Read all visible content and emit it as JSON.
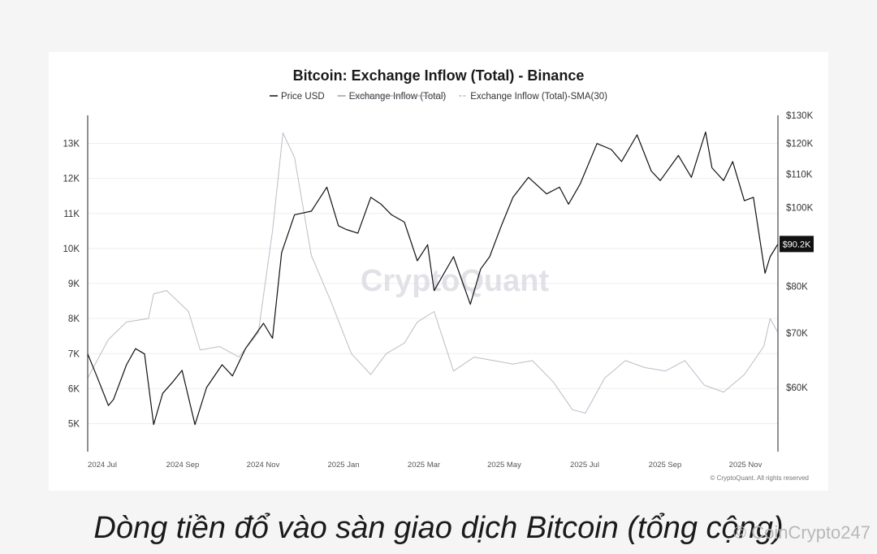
{
  "chart_data": {
    "type": "line",
    "title": "Bitcoin: Exchange Inflow (Total) - Binance",
    "legend": [
      {
        "name": "Price USD",
        "color": "#111111",
        "style": "solid",
        "struck": false
      },
      {
        "name": "Exchange Inflow (Total)",
        "color": "#9a9aa8",
        "style": "solid",
        "struck": true
      },
      {
        "name": "Exchange Inflow (Total)-SMA(30)",
        "color": "#bcbcc8",
        "style": "dashed",
        "struck": false
      }
    ],
    "legend_position": "top-center",
    "x_ticks": [
      "2024 Jul",
      "2024 Sep",
      "2024 Nov",
      "2025 Jan",
      "2025 Mar",
      "2025 May",
      "2025 Jul",
      "2025 Sep",
      "2025 Nov"
    ],
    "x_range": [
      "2024-06-15",
      "2025-12-01"
    ],
    "left_axis": {
      "ticks": [
        "5K",
        "6K",
        "7K",
        "8K",
        "9K",
        "10K",
        "11K",
        "12K",
        "13K"
      ],
      "values": [
        5000,
        6000,
        7000,
        8000,
        9000,
        10000,
        11000,
        12000,
        13000
      ],
      "range": [
        4200,
        13800
      ]
    },
    "right_axis": {
      "ticks": [
        "$60K",
        "$70K",
        "$80K",
        "$100K",
        "$110K",
        "$120K",
        "$130K"
      ],
      "values": [
        60000,
        70000,
        80000,
        100000,
        110000,
        120000,
        130000
      ],
      "scale": "log",
      "range": [
        50000,
        130000
      ]
    },
    "last_price_label": "$90.2K",
    "grid": true,
    "series": [
      {
        "name": "Price USD",
        "axis": "right",
        "x": [
          "2024-06-15",
          "2024-06-22",
          "2024-07-01",
          "2024-07-05",
          "2024-07-15",
          "2024-07-22",
          "2024-07-29",
          "2024-08-05",
          "2024-08-12",
          "2024-08-20",
          "2024-08-27",
          "2024-09-06",
          "2024-09-15",
          "2024-09-27",
          "2024-10-05",
          "2024-10-15",
          "2024-10-29",
          "2024-11-05",
          "2024-11-12",
          "2024-11-22",
          "2024-12-05",
          "2024-12-17",
          "2024-12-26",
          "2025-01-01",
          "2025-01-10",
          "2025-01-20",
          "2025-01-28",
          "2025-02-05",
          "2025-02-15",
          "2025-02-25",
          "2025-03-05",
          "2025-03-10",
          "2025-03-25",
          "2025-04-07",
          "2025-04-15",
          "2025-04-22",
          "2025-05-01",
          "2025-05-10",
          "2025-05-22",
          "2025-06-05",
          "2025-06-15",
          "2025-06-22",
          "2025-07-01",
          "2025-07-14",
          "2025-07-25",
          "2025-08-02",
          "2025-08-14",
          "2025-08-25",
          "2025-09-01",
          "2025-09-15",
          "2025-09-25",
          "2025-10-06",
          "2025-10-11",
          "2025-10-20",
          "2025-10-27",
          "2025-11-05",
          "2025-11-12",
          "2025-11-21",
          "2025-11-25",
          "2025-12-01"
        ],
        "y": [
          66000,
          62000,
          57000,
          58000,
          64000,
          67000,
          66000,
          54000,
          59000,
          61000,
          63000,
          54000,
          60000,
          64000,
          62000,
          67000,
          72000,
          69000,
          88000,
          98000,
          99000,
          106000,
          95000,
          94000,
          93000,
          103000,
          101000,
          98000,
          96000,
          86000,
          90000,
          79000,
          87000,
          76000,
          84000,
          87000,
          95000,
          103000,
          109000,
          104000,
          106000,
          101000,
          107000,
          120000,
          118000,
          114000,
          123000,
          111000,
          108000,
          116000,
          109000,
          124000,
          112000,
          108000,
          114000,
          102000,
          103000,
          83000,
          87000,
          90200
        ]
      },
      {
        "name": "Exchange Inflow (Total)-SMA(30)",
        "axis": "left",
        "x": [
          "2024-06-15",
          "2024-07-01",
          "2024-07-15",
          "2024-08-01",
          "2024-08-05",
          "2024-08-15",
          "2024-09-01",
          "2024-09-10",
          "2024-09-25",
          "2024-10-10",
          "2024-10-25",
          "2024-11-05",
          "2024-11-13",
          "2024-11-22",
          "2024-12-05",
          "2024-12-20",
          "2025-01-05",
          "2025-01-20",
          "2025-02-01",
          "2025-02-15",
          "2025-02-25",
          "2025-03-10",
          "2025-03-25",
          "2025-04-10",
          "2025-04-25",
          "2025-05-10",
          "2025-05-25",
          "2025-06-10",
          "2025-06-25",
          "2025-07-05",
          "2025-07-20",
          "2025-08-05",
          "2025-08-20",
          "2025-09-05",
          "2025-09-20",
          "2025-10-05",
          "2025-10-20",
          "2025-11-05",
          "2025-11-20",
          "2025-11-25",
          "2025-12-01"
        ],
        "y": [
          6300,
          7400,
          7900,
          8000,
          8700,
          8800,
          8200,
          7100,
          7200,
          6900,
          7600,
          10500,
          13300,
          12600,
          9800,
          8500,
          7000,
          6400,
          7000,
          7300,
          7900,
          8200,
          6500,
          6900,
          6800,
          6700,
          6800,
          6200,
          5400,
          5300,
          6300,
          6800,
          6600,
          6500,
          6800,
          6100,
          5900,
          6400,
          7200,
          8000,
          7600
        ]
      }
    ]
  },
  "watermark": "CryptoQuant",
  "copyright": "© CryptoQuant. All rights reserved",
  "caption": "Dòng tiền đổ vào sàn giao dịch Bitcoin (tổng cộng)",
  "overlay_tag": "© CoinCrypto247"
}
